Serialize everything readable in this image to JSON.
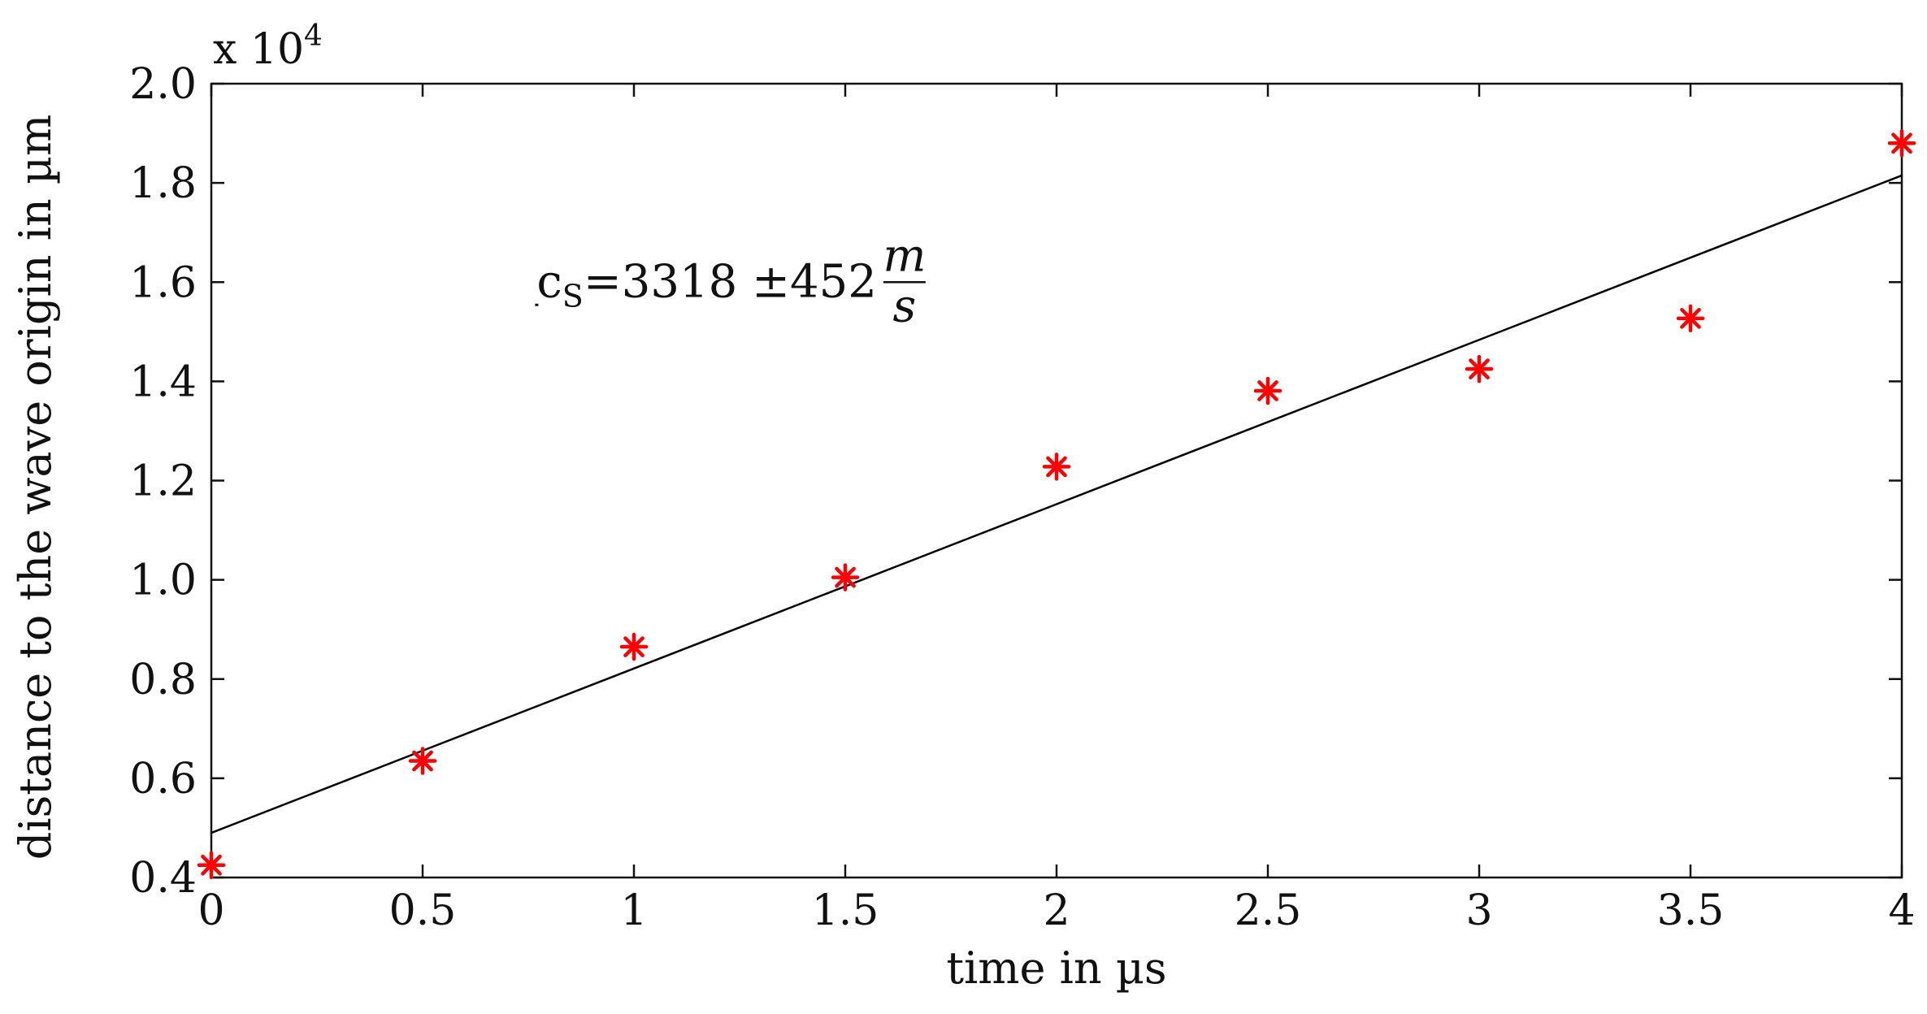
{
  "chart_data": {
    "type": "scatter",
    "title": "",
    "xlabel": "time in µs",
    "ylabel": "distance to the wave origin in µm",
    "y_multiplier_label": {
      "base": "x 10",
      "exponent": "4"
    },
    "xlim": [
      0,
      4
    ],
    "ylim": [
      0.4,
      2.0
    ],
    "x_ticks": [
      0,
      0.5,
      1,
      1.5,
      2,
      2.5,
      3,
      3.5,
      4
    ],
    "x_tick_labels": [
      "0",
      "0.5",
      "1",
      "1.5",
      "2",
      "2.5",
      "3",
      "3.5",
      "4"
    ],
    "y_ticks": [
      0.4,
      0.6,
      0.8,
      1.0,
      1.2,
      1.4,
      1.6,
      1.8,
      2.0
    ],
    "y_tick_labels": [
      "0.4",
      "0.6",
      "0.8",
      "1.0",
      "1.2",
      "1.4",
      "1.6",
      "1.8",
      "2.0"
    ],
    "grid": false,
    "series": [
      {
        "marker": "asterisk",
        "color": "#ff0000",
        "x": [
          0,
          0.5,
          1,
          1.5,
          2,
          2.5,
          3,
          3.5,
          4
        ],
        "y": [
          0.425,
          0.635,
          0.865,
          1.005,
          1.228,
          1.381,
          1.425,
          1.527,
          1.88
        ]
      }
    ],
    "fit_line": {
      "color": "#000000",
      "x": [
        0,
        4
      ],
      "y": [
        0.49,
        1.815
      ]
    },
    "annotation": {
      "prefix": "c",
      "subscript": "S",
      "value": "=3318 ",
      "pm": "±",
      "error": "452 ",
      "unit_numerator": "m",
      "unit_denominator": "s",
      "anchor": {
        "x": 0.77,
        "y": 1.6
      }
    }
  }
}
